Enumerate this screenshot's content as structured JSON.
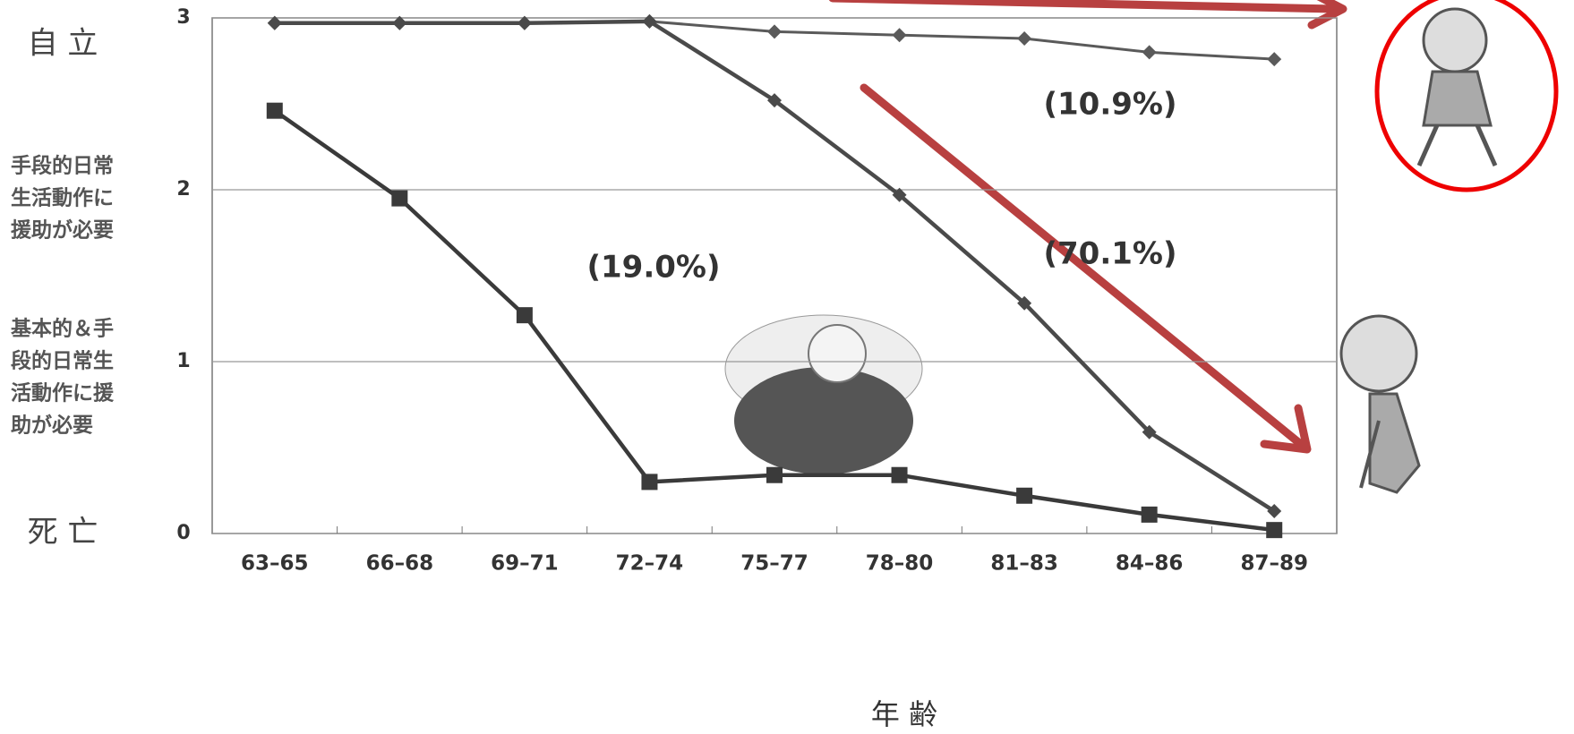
{
  "chart_data": {
    "type": "line",
    "categories": [
      "63–65",
      "66–68",
      "69–71",
      "72–74",
      "75–77",
      "78–80",
      "81–83",
      "84–86",
      "87–89"
    ],
    "series": [
      {
        "color": "#5a5a5a",
        "marker": "diamond",
        "values": [
          2.97,
          2.97,
          2.97,
          2.98,
          2.92,
          2.9,
          2.88,
          2.8,
          2.76
        ]
      },
      {
        "color": "#4a4a4a",
        "marker": "diamond",
        "values": [
          2.97,
          2.97,
          2.97,
          2.98,
          2.52,
          1.97,
          1.34,
          0.59,
          0.13
        ]
      },
      {
        "color": "#3a3a3a",
        "marker": "square",
        "values": [
          2.46,
          1.95,
          1.27,
          0.3,
          0.34,
          0.34,
          0.22,
          0.11,
          0.02
        ]
      }
    ],
    "ylim": [
      0,
      3
    ],
    "yticks": [
      0,
      1,
      2,
      3
    ],
    "grid": true,
    "level_labels": [
      {
        "value": 3,
        "lines": [
          "自 立"
        ]
      },
      {
        "value": 2,
        "lines": [
          "手段的日常",
          "生活動作に",
          "援助が必要"
        ]
      },
      {
        "value": 1,
        "lines": [
          "基本的＆手",
          "段的日常生",
          "活動作に援",
          "助が必要"
        ]
      },
      {
        "value": 0,
        "lines": [
          "死 亡"
        ]
      }
    ],
    "xlabel": "年 齢",
    "annotations": [
      "(10.9%)",
      "(19.0%)",
      "(70.1%)"
    ]
  }
}
